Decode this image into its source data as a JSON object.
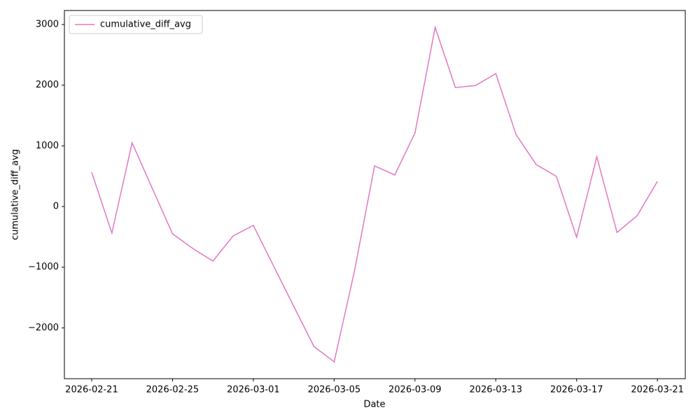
{
  "chart_data": {
    "type": "line",
    "x_label": "Date",
    "y_label": "cumulative_diff_avg",
    "x": [
      "2026-02-21",
      "2026-02-22",
      "2026-02-23",
      "2026-02-24",
      "2026-02-25",
      "2026-02-26",
      "2026-02-27",
      "2026-02-28",
      "2026-03-01",
      "2026-03-02",
      "2026-03-03",
      "2026-03-04",
      "2026-03-05",
      "2026-03-06",
      "2026-03-07",
      "2026-03-08",
      "2026-03-09",
      "2026-03-10",
      "2026-03-11",
      "2026-03-12",
      "2026-03-13",
      "2026-03-14",
      "2026-03-15",
      "2026-03-16",
      "2026-03-17",
      "2026-03-18",
      "2026-03-19",
      "2026-03-20",
      "2026-03-21"
    ],
    "series": [
      {
        "name": "cumulative_diff_avg",
        "color": "#e377c2",
        "values": [
          565,
          -438,
          1050,
          300,
          -450,
          -690,
          -900,
          -485,
          -311,
          -978,
          -1644,
          -2307,
          -2560,
          -1073,
          670,
          520,
          1211,
          2953,
          1961,
          1995,
          2191,
          1188,
          692,
          496,
          -507,
          819,
          -427,
          -150,
          415
        ]
      }
    ],
    "xlim": [
      "2026-02-19T15:36",
      "2026-03-22T09:06"
    ],
    "xticks": [
      "2026-02-21",
      "2026-02-25",
      "2026-03-01",
      "2026-03-05",
      "2026-03-09",
      "2026-03-13",
      "2026-03-17",
      "2026-03-21"
    ],
    "ylim": [
      -2838,
      3231
    ],
    "yticks": [
      {
        "value": -2000,
        "label": "−2000"
      },
      {
        "value": -1000,
        "label": "−1000"
      },
      0,
      1000,
      2000,
      3000
    ],
    "grid": false,
    "legend": "upper left"
  }
}
